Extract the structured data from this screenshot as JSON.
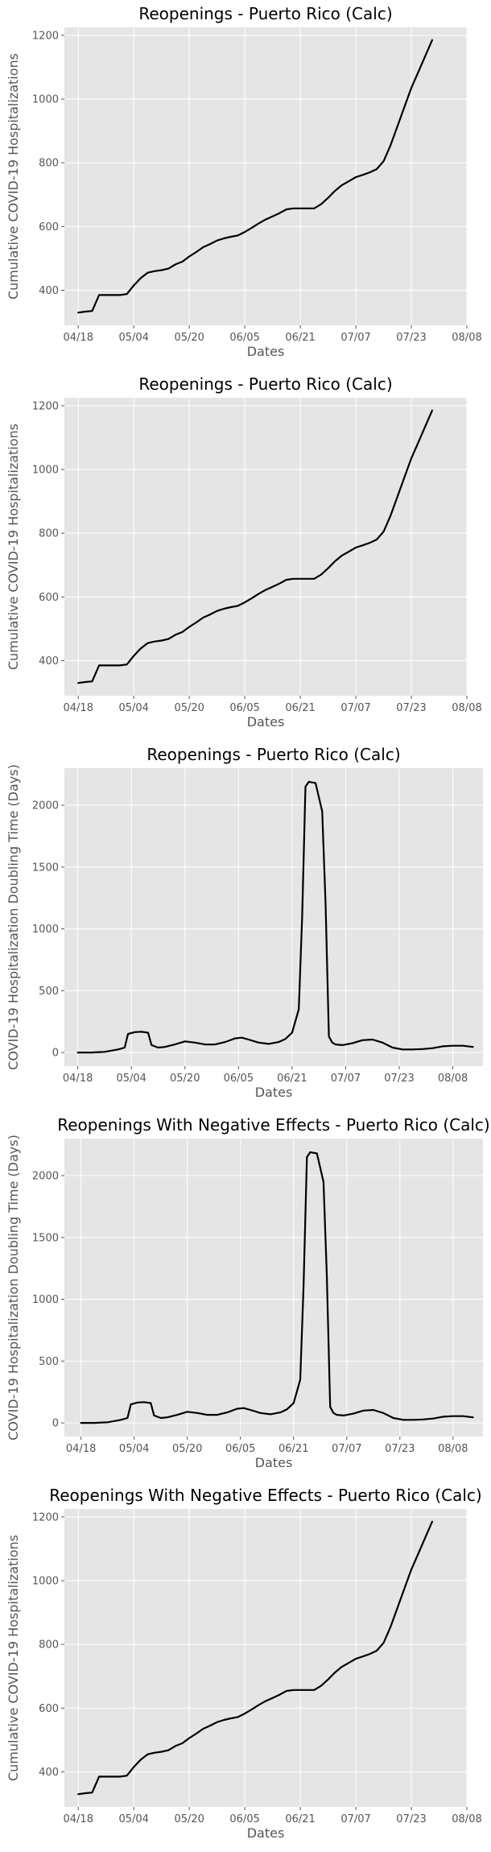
{
  "chart_data": [
    {
      "type": "line",
      "title": "Reopenings - Puerto Rico (Calc)",
      "xlabel": "Dates",
      "ylabel": "Cumulative COVID-19 Hospitalizations",
      "xlim": [
        "04/14",
        "08/08"
      ],
      "ylim": [
        290,
        1225
      ],
      "x_ticks": [
        "04/18",
        "05/04",
        "05/20",
        "06/05",
        "06/21",
        "07/07",
        "07/23",
        "08/08"
      ],
      "y_ticks": [
        400,
        600,
        800,
        1000,
        1200
      ],
      "grid": true,
      "line_color": "#000000",
      "series": [
        {
          "x": [
            "04/18",
            "04/20",
            "04/22",
            "04/24",
            "04/26",
            "04/28",
            "04/30",
            "05/02",
            "05/04",
            "05/06",
            "05/08",
            "05/10",
            "05/12",
            "05/14",
            "05/16",
            "05/18",
            "05/20",
            "05/22",
            "05/24",
            "05/26",
            "05/28",
            "05/30",
            "06/01",
            "06/03",
            "06/05",
            "06/07",
            "06/09",
            "06/11",
            "06/13",
            "06/15",
            "06/17",
            "06/19",
            "06/21",
            "06/23",
            "06/25",
            "06/27",
            "06/29",
            "07/01",
            "07/03",
            "07/05",
            "07/07",
            "07/09",
            "07/11",
            "07/13",
            "07/15",
            "07/17",
            "07/19",
            "07/21",
            "07/23",
            "07/25",
            "07/27",
            "07/29"
          ],
          "y": [
            330,
            333,
            335,
            385,
            385,
            385,
            385,
            388,
            415,
            438,
            455,
            460,
            463,
            468,
            481,
            490,
            506,
            520,
            535,
            545,
            556,
            563,
            568,
            572,
            583,
            596,
            610,
            622,
            632,
            642,
            654,
            657,
            657,
            657,
            657,
            670,
            690,
            712,
            730,
            742,
            755,
            762,
            770,
            780,
            805,
            855,
            915,
            975,
            1035,
            1085,
            1135,
            1185
          ]
        }
      ]
    },
    {
      "type": "line",
      "title": "Reopenings - Puerto Rico (Calc)",
      "xlabel": "Dates",
      "ylabel": "Cumulative COVID-19 Hospitalizations",
      "xlim": [
        "04/14",
        "08/08"
      ],
      "ylim": [
        290,
        1225
      ],
      "x_ticks": [
        "04/18",
        "05/04",
        "05/20",
        "06/05",
        "06/21",
        "07/07",
        "07/23",
        "08/08"
      ],
      "y_ticks": [
        400,
        600,
        800,
        1000,
        1200
      ],
      "grid": true,
      "line_color": "#000000",
      "series": [
        {
          "x": [
            "04/18",
            "04/20",
            "04/22",
            "04/24",
            "04/26",
            "04/28",
            "04/30",
            "05/02",
            "05/04",
            "05/06",
            "05/08",
            "05/10",
            "05/12",
            "05/14",
            "05/16",
            "05/18",
            "05/20",
            "05/22",
            "05/24",
            "05/26",
            "05/28",
            "05/30",
            "06/01",
            "06/03",
            "06/05",
            "06/07",
            "06/09",
            "06/11",
            "06/13",
            "06/15",
            "06/17",
            "06/19",
            "06/21",
            "06/23",
            "06/25",
            "06/27",
            "06/29",
            "07/01",
            "07/03",
            "07/05",
            "07/07",
            "07/09",
            "07/11",
            "07/13",
            "07/15",
            "07/17",
            "07/19",
            "07/21",
            "07/23",
            "07/25",
            "07/27",
            "07/29"
          ],
          "y": [
            330,
            333,
            335,
            385,
            385,
            385,
            385,
            388,
            415,
            438,
            455,
            460,
            463,
            468,
            481,
            490,
            506,
            520,
            535,
            545,
            556,
            563,
            568,
            572,
            583,
            596,
            610,
            622,
            632,
            642,
            654,
            657,
            657,
            657,
            657,
            670,
            690,
            712,
            730,
            742,
            755,
            762,
            770,
            780,
            805,
            855,
            915,
            975,
            1035,
            1085,
            1135,
            1185
          ]
        }
      ]
    },
    {
      "type": "line",
      "title": "Reopenings - Puerto Rico (Calc)",
      "xlabel": "Dates",
      "ylabel": "COVID-19 Hospitalization Doubling Time (Days)",
      "xlim": [
        "04/14",
        "08/17"
      ],
      "ylim": [
        -110,
        2300
      ],
      "x_ticks": [
        "04/18",
        "05/04",
        "05/20",
        "06/05",
        "06/21",
        "07/07",
        "07/23",
        "08/08"
      ],
      "y_ticks": [
        0,
        500,
        1000,
        1500,
        2000
      ],
      "grid": true,
      "line_color": "#000000",
      "series": [
        {
          "x": [
            "04/18",
            "04/22",
            "04/26",
            "04/30",
            "05/02",
            "05/03",
            "05/05",
            "05/07",
            "05/09",
            "05/10",
            "05/12",
            "05/14",
            "05/17",
            "05/20",
            "05/23",
            "05/26",
            "05/29",
            "06/01",
            "06/04",
            "06/06",
            "06/08",
            "06/11",
            "06/14",
            "06/17",
            "06/19",
            "06/21",
            "06/23",
            "06/24",
            "06/25",
            "06/26",
            "06/28",
            "06/30",
            "07/01",
            "07/02",
            "07/03",
            "07/04",
            "07/06",
            "07/09",
            "07/12",
            "07/15",
            "07/18",
            "07/21",
            "07/24",
            "07/27",
            "07/30",
            "08/02",
            "08/05",
            "08/08",
            "08/11",
            "08/14"
          ],
          "y": [
            0,
            0,
            5,
            25,
            40,
            150,
            165,
            168,
            160,
            60,
            40,
            45,
            65,
            90,
            80,
            65,
            65,
            85,
            115,
            120,
            105,
            80,
            70,
            85,
            110,
            160,
            350,
            1100,
            2150,
            2190,
            2180,
            1950,
            1200,
            130,
            80,
            65,
            60,
            75,
            100,
            105,
            80,
            40,
            25,
            25,
            28,
            35,
            50,
            55,
            55,
            45
          ]
        }
      ]
    },
    {
      "type": "line",
      "title": "Reopenings With Negative Effects - Puerto Rico (Calc)",
      "xlabel": "Dates",
      "ylabel": "COVID-19 Hospitalization Doubling Time (Days)",
      "xlim": [
        "04/13",
        "08/17"
      ],
      "ylim": [
        -110,
        2300
      ],
      "x_ticks": [
        "04/18",
        "05/04",
        "05/20",
        "06/05",
        "06/21",
        "07/07",
        "07/23",
        "08/08"
      ],
      "y_ticks": [
        0,
        500,
        1000,
        1500,
        2000
      ],
      "grid": true,
      "line_color": "#000000",
      "series": [
        {
          "x": [
            "04/18",
            "04/22",
            "04/26",
            "04/30",
            "05/02",
            "05/03",
            "05/05",
            "05/07",
            "05/09",
            "05/10",
            "05/12",
            "05/14",
            "05/17",
            "05/20",
            "05/23",
            "05/26",
            "05/29",
            "06/01",
            "06/04",
            "06/06",
            "06/08",
            "06/11",
            "06/14",
            "06/17",
            "06/19",
            "06/21",
            "06/23",
            "06/24",
            "06/25",
            "06/26",
            "06/28",
            "06/30",
            "07/01",
            "07/02",
            "07/03",
            "07/04",
            "07/06",
            "07/09",
            "07/12",
            "07/15",
            "07/18",
            "07/21",
            "07/24",
            "07/27",
            "07/30",
            "08/02",
            "08/05",
            "08/08",
            "08/11",
            "08/14"
          ],
          "y": [
            0,
            0,
            5,
            25,
            40,
            150,
            165,
            168,
            160,
            60,
            40,
            45,
            65,
            90,
            80,
            65,
            65,
            85,
            115,
            120,
            105,
            80,
            70,
            85,
            110,
            160,
            350,
            1100,
            2150,
            2190,
            2180,
            1950,
            1200,
            130,
            80,
            65,
            60,
            75,
            100,
            105,
            80,
            40,
            25,
            25,
            28,
            35,
            50,
            55,
            55,
            45
          ]
        }
      ]
    },
    {
      "type": "line",
      "title": "Reopenings With Negative Effects - Puerto Rico (Calc)",
      "xlabel": "Dates",
      "ylabel": "Cumulative COVID-19 Hospitalizations",
      "xlim": [
        "04/14",
        "08/08"
      ],
      "ylim": [
        290,
        1225
      ],
      "x_ticks": [
        "04/18",
        "05/04",
        "05/20",
        "06/05",
        "06/21",
        "07/07",
        "07/23",
        "08/08"
      ],
      "y_ticks": [
        400,
        600,
        800,
        1000,
        1200
      ],
      "grid": true,
      "line_color": "#000000",
      "series": [
        {
          "x": [
            "04/18",
            "04/20",
            "04/22",
            "04/24",
            "04/26",
            "04/28",
            "04/30",
            "05/02",
            "05/04",
            "05/06",
            "05/08",
            "05/10",
            "05/12",
            "05/14",
            "05/16",
            "05/18",
            "05/20",
            "05/22",
            "05/24",
            "05/26",
            "05/28",
            "05/30",
            "06/01",
            "06/03",
            "06/05",
            "06/07",
            "06/09",
            "06/11",
            "06/13",
            "06/15",
            "06/17",
            "06/19",
            "06/21",
            "06/23",
            "06/25",
            "06/27",
            "06/29",
            "07/01",
            "07/03",
            "07/05",
            "07/07",
            "07/09",
            "07/11",
            "07/13",
            "07/15",
            "07/17",
            "07/19",
            "07/21",
            "07/23",
            "07/25",
            "07/27",
            "07/29"
          ],
          "y": [
            330,
            333,
            335,
            385,
            385,
            385,
            385,
            388,
            415,
            438,
            455,
            460,
            463,
            468,
            481,
            490,
            506,
            520,
            535,
            545,
            556,
            563,
            568,
            572,
            583,
            596,
            610,
            622,
            632,
            642,
            654,
            657,
            657,
            657,
            657,
            670,
            690,
            712,
            730,
            742,
            755,
            762,
            770,
            780,
            805,
            855,
            915,
            975,
            1035,
            1085,
            1135,
            1185
          ]
        }
      ]
    }
  ]
}
